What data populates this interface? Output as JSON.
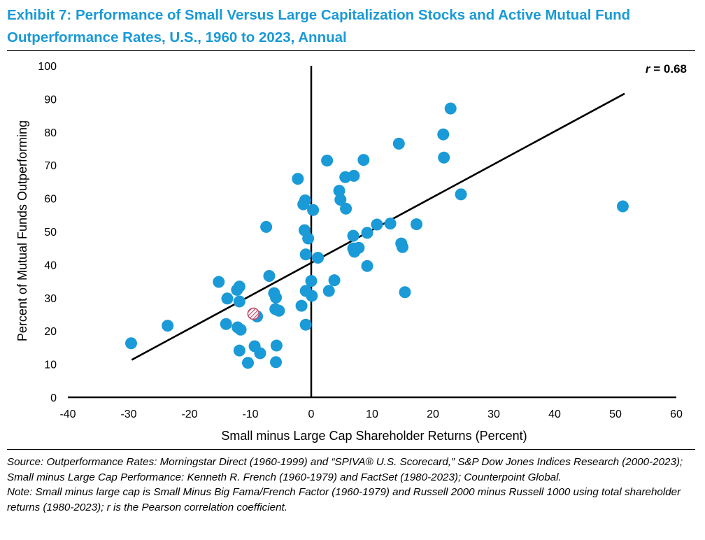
{
  "title_line1": "Exhibit 7: Performance of Small Versus Large Capitalization Stocks and Active Mutual Fund",
  "title_line2": "Outperformance Rates, U.S., 1960 to 2023, Annual",
  "source_note": "Source: Outperformance Rates: Morningstar Direct (1960-1999) and “SPIVA® U.S. Scorecard,” S&P Dow Jones Indices Research (2000-2023); Small minus Large Cap Performance: Kenneth R. French (1960-1979) and FactSet (1980-2023); Counterpoint Global.",
  "note": "Note: Small minus large cap is Small Minus Big Fama/French Factor (1960-1979) and Russell 2000 minus Russell 1000 using total shareholder returns (1980-2023); r is the Pearson correlation coefficient.",
  "colors": {
    "title": "#1a9ad6",
    "points": "#1a9ad6",
    "highlight": "#c0506e",
    "line": "#000000"
  },
  "chart_data": {
    "type": "scatter",
    "xlabel": "Small minus Large Cap Shareholder Returns (Percent)",
    "ylabel": "Percent of Mutual Funds Outperforming",
    "xlim": [
      -40,
      60
    ],
    "ylim": [
      0,
      100
    ],
    "xticks": [
      -40,
      -30,
      -20,
      -10,
      0,
      10,
      20,
      30,
      40,
      50,
      60
    ],
    "yticks": [
      0,
      10,
      20,
      30,
      40,
      50,
      60,
      70,
      80,
      90,
      100
    ],
    "annotation": {
      "prefix": "r",
      "text": " = 0.68",
      "value": 0.68
    },
    "trendline": {
      "x": [
        -29.5,
        51.5
      ],
      "y": [
        11.3,
        91.6
      ]
    },
    "highlight": {
      "x": -9.5,
      "y": 25.2,
      "style": "hatched"
    },
    "points": [
      [
        -29.6,
        16.3
      ],
      [
        -23.6,
        21.6
      ],
      [
        -15.2,
        34.8
      ],
      [
        -13.8,
        29.8
      ],
      [
        -14,
        22.1
      ],
      [
        -12.2,
        32.4
      ],
      [
        -11.8,
        33.4
      ],
      [
        -11.8,
        28.9
      ],
      [
        -12.1,
        21.1
      ],
      [
        -11.6,
        20.4
      ],
      [
        -11.8,
        14.1
      ],
      [
        -10.4,
        10.4
      ],
      [
        -9.3,
        15.4
      ],
      [
        -8.9,
        24.4
      ],
      [
        -8.4,
        13.3
      ],
      [
        -7.4,
        51.4
      ],
      [
        -6.9,
        36.6
      ],
      [
        -6.1,
        31.4
      ],
      [
        -5.8,
        30.1
      ],
      [
        -5.9,
        26.6
      ],
      [
        -5.3,
        26.1
      ],
      [
        -5.7,
        15.6
      ],
      [
        -5.8,
        10.6
      ],
      [
        -2.2,
        65.9
      ],
      [
        -1.6,
        27.6
      ],
      [
        -1.3,
        58.2
      ],
      [
        -1,
        59.4
      ],
      [
        -1.1,
        50.4
      ],
      [
        -0.5,
        47.9
      ],
      [
        -0.9,
        43.1
      ],
      [
        -0.9,
        32.1
      ],
      [
        -0.9,
        21.9
      ],
      [
        0.3,
        56.5
      ],
      [
        0,
        35.1
      ],
      [
        0.1,
        30.6
      ],
      [
        1.1,
        42.1
      ],
      [
        2.6,
        71.4
      ],
      [
        2.9,
        32.1
      ],
      [
        3.8,
        35.3
      ],
      [
        4.6,
        62.3
      ],
      [
        4.8,
        59.6
      ],
      [
        5.6,
        66.4
      ],
      [
        5.7,
        56.9
      ],
      [
        7.0,
        66.8
      ],
      [
        8.6,
        71.6
      ],
      [
        6.9,
        48.7
      ],
      [
        6.9,
        44.9
      ],
      [
        7.1,
        43.9
      ],
      [
        7.8,
        45.1
      ],
      [
        9.2,
        49.6
      ],
      [
        9.2,
        39.6
      ],
      [
        10.8,
        52.1
      ],
      [
        13.0,
        52.4
      ],
      [
        14.4,
        76.5
      ],
      [
        14.8,
        46.4
      ],
      [
        15.0,
        45.3
      ],
      [
        15.4,
        31.7
      ],
      [
        17.3,
        52.2
      ],
      [
        21.7,
        79.3
      ],
      [
        21.8,
        72.3
      ],
      [
        22.9,
        87.1
      ],
      [
        24.6,
        61.2
      ],
      [
        51.2,
        57.6
      ]
    ]
  }
}
